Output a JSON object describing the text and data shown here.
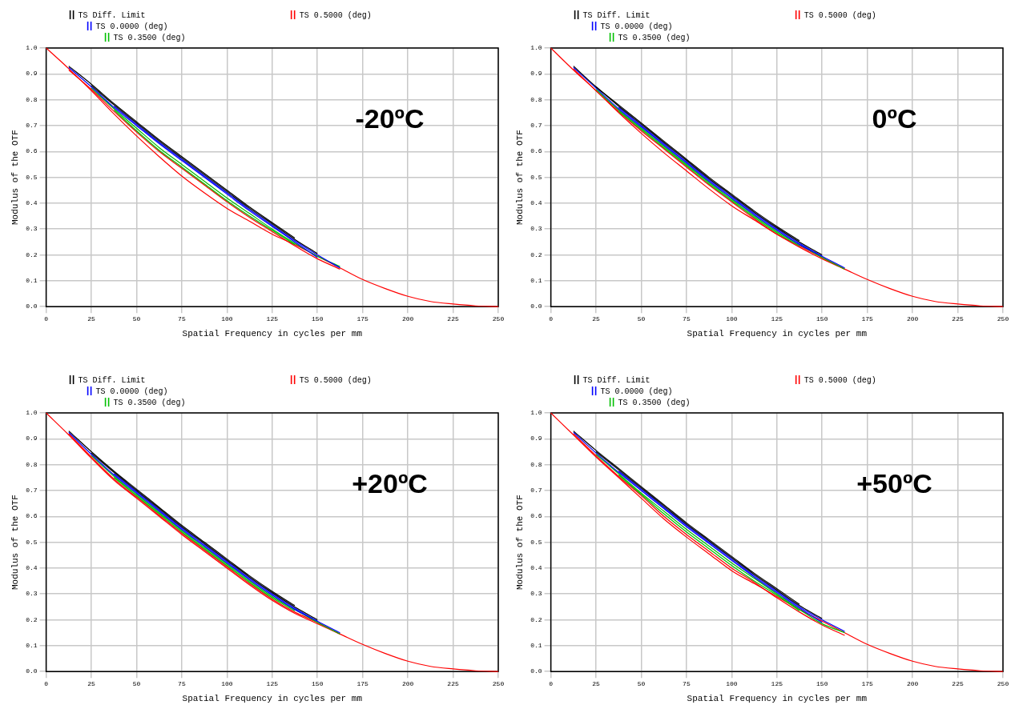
{
  "chart_data": [
    {
      "type": "line",
      "xlabel": "Spatial Frequency in cycles per mm",
      "ylabel": "Modulus of the OTF",
      "annotations": [
        "-20ºC"
      ],
      "legend": "top left",
      "grid": true,
      "marker": "none",
      "line_style": "solid",
      "x": [
        0,
        12.5,
        25,
        37.5,
        50,
        62.5,
        75,
        87.5,
        100,
        112.5,
        125,
        137.5,
        150,
        162.5,
        175,
        187.5,
        200,
        212.5,
        225,
        237.5,
        250
      ],
      "xlim": [
        0,
        250
      ],
      "xticks": [
        0,
        25,
        50,
        75,
        100,
        125,
        150,
        175,
        200,
        225,
        250
      ],
      "ylim": [
        0,
        1
      ],
      "yticks": [
        {
          "value": 0,
          "label": "0.0"
        },
        {
          "value": 0.1,
          "label": "0.1"
        },
        {
          "value": 0.2,
          "label": "0.2"
        },
        {
          "value": 0.3,
          "label": "0.3"
        },
        {
          "value": 0.4,
          "label": "0.4"
        },
        {
          "value": 0.5,
          "label": "0.5"
        },
        {
          "value": 0.6,
          "label": "0.6"
        },
        {
          "value": 0.7,
          "label": "0.7"
        },
        {
          "value": 0.8,
          "label": "0.8"
        },
        {
          "value": 0.9,
          "label": "0.9"
        },
        {
          "value": 1,
          "label": "1.0"
        }
      ],
      "series": [
        {
          "name": "TS Diff. Limit",
          "color": "#000000",
          "values": [
            null,
            0.93,
            0.86,
            0.785,
            0.715,
            0.645,
            0.58,
            0.515,
            0.45,
            0.385,
            0.325,
            0.265,
            null,
            null,
            null,
            null,
            null,
            null,
            null,
            null,
            null
          ]
        },
        {
          "color": "#000000",
          "values": [
            null,
            null,
            0.855,
            0.78,
            0.71,
            0.64,
            0.575,
            0.51,
            0.445,
            0.38,
            0.32,
            0.26,
            0.205,
            null,
            null,
            null,
            null,
            null,
            null,
            null,
            null
          ]
        },
        {
          "name": "TS 0.0000 (deg)",
          "color": "#0000ff",
          "values": [
            null,
            null,
            null,
            0.775,
            0.705,
            0.635,
            0.57,
            0.505,
            0.44,
            0.375,
            0.315,
            0.255,
            0.2,
            0.15,
            null,
            null,
            null,
            null,
            null,
            null,
            null
          ]
        },
        {
          "color": "#0000ff",
          "values": [
            null,
            0.925,
            0.85,
            0.77,
            0.7,
            0.63,
            0.565,
            0.5,
            0.435,
            0.37,
            0.31,
            0.25,
            0.19,
            null,
            null,
            null,
            null,
            null,
            null,
            null,
            null
          ]
        },
        {
          "name": "TS 0.3500 (deg)",
          "color": "#00c000",
          "values": [
            null,
            null,
            0.845,
            0.765,
            0.69,
            0.615,
            0.55,
            0.485,
            0.42,
            0.36,
            0.3,
            0.245,
            0.195,
            0.155,
            null,
            null,
            null,
            null,
            null,
            null,
            null
          ]
        },
        {
          "color": "#00c000",
          "values": [
            null,
            null,
            null,
            0.76,
            0.68,
            0.605,
            0.54,
            0.475,
            0.41,
            0.35,
            0.295,
            0.24,
            null,
            null,
            null,
            null,
            null,
            null,
            null,
            null,
            null
          ]
        },
        {
          "name": "TS 0.5000 (deg)",
          "color": "#ff0000",
          "values": [
            null,
            0.915,
            0.84,
            0.755,
            0.675,
            0.6,
            0.535,
            0.47,
            0.405,
            0.345,
            0.29,
            0.235,
            0.185,
            0.145,
            null,
            null,
            null,
            null,
            null,
            null,
            null
          ]
        },
        {
          "color": "#ff0000",
          "values": [
            1,
            0.92,
            0.835,
            0.745,
            0.66,
            0.58,
            0.505,
            0.44,
            0.38,
            0.33,
            0.28,
            0.24,
            0.195,
            0.15,
            0.105,
            0.07,
            0.04,
            0.02,
            0.01,
            0.003,
            0
          ]
        }
      ]
    },
    {
      "type": "line",
      "xlabel": "Spatial Frequency in cycles per mm",
      "ylabel": "Modulus of the OTF",
      "annotations": [
        "0ºC"
      ],
      "legend": "top left",
      "grid": true,
      "marker": "none",
      "line_style": "solid",
      "x": [
        0,
        12.5,
        25,
        37.5,
        50,
        62.5,
        75,
        87.5,
        100,
        112.5,
        125,
        137.5,
        150,
        162.5,
        175,
        187.5,
        200,
        212.5,
        225,
        237.5,
        250
      ],
      "xlim": [
        0,
        250
      ],
      "xticks": [
        0,
        25,
        50,
        75,
        100,
        125,
        150,
        175,
        200,
        225,
        250
      ],
      "ylim": [
        0,
        1
      ],
      "yticks": [
        {
          "value": 0,
          "label": "0.0"
        },
        {
          "value": 0.1,
          "label": "0.1"
        },
        {
          "value": 0.2,
          "label": "0.2"
        },
        {
          "value": 0.3,
          "label": "0.3"
        },
        {
          "value": 0.4,
          "label": "0.4"
        },
        {
          "value": 0.5,
          "label": "0.5"
        },
        {
          "value": 0.6,
          "label": "0.6"
        },
        {
          "value": 0.7,
          "label": "0.7"
        },
        {
          "value": 0.8,
          "label": "0.8"
        },
        {
          "value": 0.9,
          "label": "0.9"
        },
        {
          "value": 1,
          "label": "1.0"
        }
      ],
      "series": [
        {
          "name": "TS Diff. Limit",
          "color": "#000000",
          "values": [
            null,
            0.93,
            0.85,
            0.78,
            0.71,
            0.64,
            0.57,
            0.5,
            0.435,
            0.37,
            0.31,
            0.255,
            null,
            null,
            null,
            null,
            null,
            null,
            null,
            null,
            null
          ]
        },
        {
          "color": "#000000",
          "values": [
            null,
            null,
            0.85,
            0.775,
            0.705,
            0.635,
            0.565,
            0.495,
            0.43,
            0.365,
            0.305,
            0.25,
            0.2,
            null,
            null,
            null,
            null,
            null,
            null,
            null,
            null
          ]
        },
        {
          "name": "TS 0.0000 (deg)",
          "color": "#0000ff",
          "values": [
            null,
            null,
            null,
            0.77,
            0.7,
            0.63,
            0.56,
            0.49,
            0.425,
            0.36,
            0.3,
            0.245,
            0.195,
            0.15,
            null,
            null,
            null,
            null,
            null,
            null,
            null
          ]
        },
        {
          "color": "#0000ff",
          "values": [
            null,
            0.925,
            0.845,
            0.765,
            0.695,
            0.625,
            0.555,
            0.485,
            0.42,
            0.355,
            0.295,
            0.24,
            0.195,
            null,
            null,
            null,
            null,
            null,
            null,
            null,
            null
          ]
        },
        {
          "name": "TS 0.3500 (deg)",
          "color": "#00c000",
          "values": [
            null,
            null,
            0.84,
            0.76,
            0.69,
            0.62,
            0.55,
            0.48,
            0.415,
            0.35,
            0.29,
            0.24,
            0.19,
            0.145,
            null,
            null,
            null,
            null,
            null,
            null,
            null
          ]
        },
        {
          "color": "#00c000",
          "values": [
            null,
            null,
            null,
            0.755,
            0.685,
            0.615,
            0.545,
            0.475,
            0.41,
            0.345,
            0.285,
            0.235,
            null,
            null,
            null,
            null,
            null,
            null,
            null,
            null,
            null
          ]
        },
        {
          "name": "TS 0.5000 (deg)",
          "color": "#ff0000",
          "values": [
            null,
            0.92,
            0.835,
            0.755,
            0.68,
            0.61,
            0.54,
            0.47,
            0.405,
            0.34,
            0.28,
            0.235,
            0.19,
            0.145,
            null,
            null,
            null,
            null,
            null,
            null,
            null
          ]
        },
        {
          "color": "#ff0000",
          "values": [
            1,
            0.915,
            0.835,
            0.75,
            0.67,
            0.595,
            0.525,
            0.455,
            0.39,
            0.335,
            0.28,
            0.23,
            0.185,
            0.145,
            0.105,
            0.07,
            0.04,
            0.02,
            0.01,
            0.003,
            0
          ]
        }
      ]
    },
    {
      "type": "line",
      "xlabel": "Spatial Frequency in cycles per mm",
      "ylabel": "Modulus of the OTF",
      "annotations": [
        "+20ºC"
      ],
      "legend": "top left",
      "grid": true,
      "marker": "none",
      "line_style": "solid",
      "x": [
        0,
        12.5,
        25,
        37.5,
        50,
        62.5,
        75,
        87.5,
        100,
        112.5,
        125,
        137.5,
        150,
        162.5,
        175,
        187.5,
        200,
        212.5,
        225,
        237.5,
        250
      ],
      "xlim": [
        0,
        250
      ],
      "xticks": [
        0,
        25,
        50,
        75,
        100,
        125,
        150,
        175,
        200,
        225,
        250
      ],
      "ylim": [
        0,
        1
      ],
      "yticks": [
        {
          "value": 0,
          "label": "0.0"
        },
        {
          "value": 0.1,
          "label": "0.1"
        },
        {
          "value": 0.2,
          "label": "0.2"
        },
        {
          "value": 0.3,
          "label": "0.3"
        },
        {
          "value": 0.4,
          "label": "0.4"
        },
        {
          "value": 0.5,
          "label": "0.5"
        },
        {
          "value": 0.6,
          "label": "0.6"
        },
        {
          "value": 0.7,
          "label": "0.7"
        },
        {
          "value": 0.8,
          "label": "0.8"
        },
        {
          "value": 0.9,
          "label": "0.9"
        },
        {
          "value": 1,
          "label": "1.0"
        }
      ],
      "series": [
        {
          "name": "TS Diff. Limit",
          "color": "#000000",
          "values": [
            null,
            0.93,
            0.85,
            0.775,
            0.705,
            0.635,
            0.565,
            0.5,
            0.435,
            0.37,
            0.31,
            0.255,
            null,
            null,
            null,
            null,
            null,
            null,
            null,
            null,
            null
          ]
        },
        {
          "color": "#000000",
          "values": [
            null,
            null,
            0.845,
            0.77,
            0.7,
            0.63,
            0.56,
            0.495,
            0.43,
            0.365,
            0.305,
            0.25,
            0.2,
            null,
            null,
            null,
            null,
            null,
            null,
            null,
            null
          ]
        },
        {
          "name": "TS 0.0000 (deg)",
          "color": "#0000ff",
          "values": [
            null,
            null,
            null,
            0.765,
            0.695,
            0.625,
            0.555,
            0.49,
            0.425,
            0.36,
            0.3,
            0.245,
            0.195,
            0.15,
            null,
            null,
            null,
            null,
            null,
            null,
            null
          ]
        },
        {
          "color": "#0000ff",
          "values": [
            null,
            0.925,
            0.84,
            0.76,
            0.69,
            0.62,
            0.55,
            0.485,
            0.42,
            0.355,
            0.295,
            0.24,
            0.195,
            null,
            null,
            null,
            null,
            null,
            null,
            null,
            null
          ]
        },
        {
          "name": "TS 0.3500 (deg)",
          "color": "#00c000",
          "values": [
            null,
            null,
            0.835,
            0.755,
            0.685,
            0.615,
            0.545,
            0.48,
            0.415,
            0.35,
            0.29,
            0.24,
            0.19,
            0.145,
            null,
            null,
            null,
            null,
            null,
            null,
            null
          ]
        },
        {
          "color": "#00c000",
          "values": [
            null,
            null,
            null,
            0.75,
            0.68,
            0.61,
            0.54,
            0.475,
            0.41,
            0.345,
            0.285,
            0.235,
            null,
            null,
            null,
            null,
            null,
            null,
            null,
            null,
            null
          ]
        },
        {
          "name": "TS 0.5000 (deg)",
          "color": "#ff0000",
          "values": [
            null,
            0.92,
            0.83,
            0.745,
            0.675,
            0.605,
            0.535,
            0.47,
            0.405,
            0.34,
            0.28,
            0.23,
            0.19,
            0.145,
            null,
            null,
            null,
            null,
            null,
            null,
            null
          ]
        },
        {
          "color": "#ff0000",
          "values": [
            1,
            0.915,
            0.825,
            0.74,
            0.67,
            0.6,
            0.53,
            0.465,
            0.4,
            0.335,
            0.275,
            0.225,
            0.185,
            0.145,
            0.105,
            0.07,
            0.04,
            0.02,
            0.01,
            0.003,
            0
          ]
        }
      ]
    },
    {
      "type": "line",
      "xlabel": "Spatial Frequency in cycles per mm",
      "ylabel": "Modulus of the OTF",
      "annotations": [
        "+50ºC"
      ],
      "legend": "top left",
      "grid": true,
      "marker": "none",
      "line_style": "solid",
      "x": [
        0,
        12.5,
        25,
        37.5,
        50,
        62.5,
        75,
        87.5,
        100,
        112.5,
        125,
        137.5,
        150,
        162.5,
        175,
        187.5,
        200,
        212.5,
        225,
        237.5,
        250
      ],
      "xlim": [
        0,
        250
      ],
      "xticks": [
        0,
        25,
        50,
        75,
        100,
        125,
        150,
        175,
        200,
        225,
        250
      ],
      "ylim": [
        0,
        1
      ],
      "yticks": [
        {
          "value": 0,
          "label": "0.0"
        },
        {
          "value": 0.1,
          "label": "0.1"
        },
        {
          "value": 0.2,
          "label": "0.2"
        },
        {
          "value": 0.3,
          "label": "0.3"
        },
        {
          "value": 0.4,
          "label": "0.4"
        },
        {
          "value": 0.5,
          "label": "0.5"
        },
        {
          "value": 0.6,
          "label": "0.6"
        },
        {
          "value": 0.7,
          "label": "0.7"
        },
        {
          "value": 0.8,
          "label": "0.8"
        },
        {
          "value": 0.9,
          "label": "0.9"
        },
        {
          "value": 1,
          "label": "1.0"
        }
      ],
      "series": [
        {
          "name": "TS Diff. Limit",
          "color": "#000000",
          "values": [
            null,
            0.93,
            0.855,
            0.785,
            0.715,
            0.645,
            0.575,
            0.51,
            0.445,
            0.38,
            0.32,
            0.26,
            null,
            null,
            null,
            null,
            null,
            null,
            null,
            null,
            null
          ]
        },
        {
          "color": "#000000",
          "values": [
            null,
            null,
            0.85,
            0.78,
            0.71,
            0.64,
            0.57,
            0.505,
            0.44,
            0.375,
            0.315,
            0.255,
            0.205,
            null,
            null,
            null,
            null,
            null,
            null,
            null,
            null
          ]
        },
        {
          "name": "TS 0.0000 (deg)",
          "color": "#0000ff",
          "values": [
            null,
            null,
            null,
            0.775,
            0.705,
            0.635,
            0.565,
            0.5,
            0.435,
            0.37,
            0.31,
            0.25,
            0.2,
            0.155,
            null,
            null,
            null,
            null,
            null,
            null,
            null
          ]
        },
        {
          "color": "#0000ff",
          "values": [
            null,
            0.925,
            0.845,
            0.77,
            0.7,
            0.63,
            0.56,
            0.495,
            0.43,
            0.365,
            0.305,
            0.245,
            0.19,
            null,
            null,
            null,
            null,
            null,
            null,
            null,
            null
          ]
        },
        {
          "name": "TS 0.3500 (deg)",
          "color": "#00c000",
          "values": [
            null,
            null,
            0.84,
            0.765,
            0.69,
            0.62,
            0.55,
            0.485,
            0.42,
            0.36,
            0.3,
            0.24,
            0.185,
            0.15,
            null,
            null,
            null,
            null,
            null,
            null,
            null
          ]
        },
        {
          "color": "#00c000",
          "values": [
            null,
            null,
            null,
            0.76,
            0.685,
            0.61,
            0.54,
            0.475,
            0.41,
            0.35,
            0.295,
            0.235,
            null,
            null,
            null,
            null,
            null,
            null,
            null,
            null,
            null
          ]
        },
        {
          "name": "TS 0.5000 (deg)",
          "color": "#ff0000",
          "values": [
            null,
            0.92,
            0.835,
            0.755,
            0.68,
            0.6,
            0.53,
            0.465,
            0.4,
            0.345,
            0.285,
            0.23,
            0.18,
            0.14,
            null,
            null,
            null,
            null,
            null,
            null,
            null
          ]
        },
        {
          "color": "#ff0000",
          "values": [
            1,
            0.915,
            0.83,
            0.75,
            0.67,
            0.59,
            0.52,
            0.455,
            0.39,
            0.34,
            0.29,
            0.24,
            0.195,
            0.15,
            0.105,
            0.07,
            0.04,
            0.02,
            0.01,
            0.003,
            0
          ]
        }
      ]
    }
  ]
}
